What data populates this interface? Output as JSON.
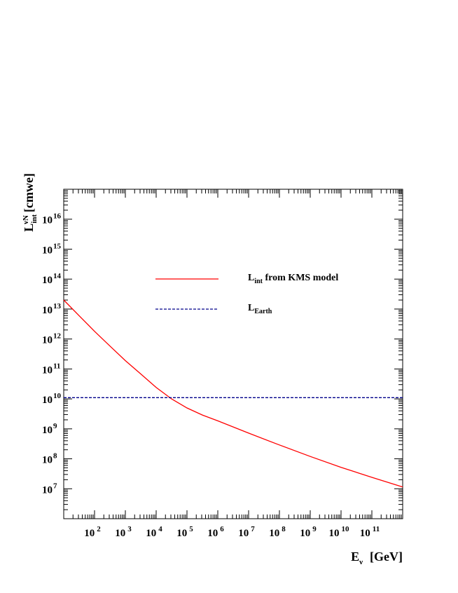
{
  "chart_data": {
    "type": "line",
    "x_scale": "log",
    "y_scale": "log",
    "xlabel": {
      "main": "E",
      "sub": "ν",
      "unit": "[GeV]"
    },
    "ylabel": {
      "main": "L",
      "sub": "int",
      "sup": "νN",
      "unit": "[cmwe]"
    },
    "xlim": [
      10,
      1000000000000.0
    ],
    "ylim": [
      1000000.0,
      1e+17
    ],
    "x_ticks": [
      {
        "base": "10",
        "exp": "2",
        "value": 100.0
      },
      {
        "base": "10",
        "exp": "3",
        "value": 1000.0
      },
      {
        "base": "10",
        "exp": "4",
        "value": 10000.0
      },
      {
        "base": "10",
        "exp": "5",
        "value": 100000.0
      },
      {
        "base": "10",
        "exp": "6",
        "value": 1000000.0
      },
      {
        "base": "10",
        "exp": "7",
        "value": 10000000.0
      },
      {
        "base": "10",
        "exp": "8",
        "value": 100000000.0
      },
      {
        "base": "10",
        "exp": "9",
        "value": 1000000000.0
      },
      {
        "base": "10",
        "exp": "10",
        "value": 10000000000.0
      },
      {
        "base": "10",
        "exp": "11",
        "value": 100000000000.0
      }
    ],
    "y_ticks": [
      {
        "base": "10",
        "exp": "7",
        "value": 10000000.0
      },
      {
        "base": "10",
        "exp": "8",
        "value": 100000000.0
      },
      {
        "base": "10",
        "exp": "9",
        "value": 1000000000.0
      },
      {
        "base": "10",
        "exp": "10",
        "value": 10000000000.0
      },
      {
        "base": "10",
        "exp": "11",
        "value": 100000000000.0
      },
      {
        "base": "10",
        "exp": "12",
        "value": 1000000000000.0
      },
      {
        "base": "10",
        "exp": "13",
        "value": 10000000000000.0
      },
      {
        "base": "10",
        "exp": "14",
        "value": 100000000000000.0
      },
      {
        "base": "10",
        "exp": "15",
        "value": 1000000000000000.0
      },
      {
        "base": "10",
        "exp": "16",
        "value": 1e+16
      }
    ],
    "grid": false,
    "legend_position": "upper-center",
    "series": [
      {
        "name": {
          "main": "L",
          "sub": "int",
          "rest": " from KMS model"
        },
        "color": "#ff0000",
        "style": "solid",
        "x": [
          10,
          31.6,
          100,
          316,
          1000,
          3160,
          10000,
          31600,
          100000,
          316000,
          1000000.0,
          10000000.0,
          100000000.0,
          1000000000.0,
          10000000000.0,
          100000000000.0,
          1000000000000.0
        ],
        "y": [
          20000000000000.0,
          6000000000000.0,
          1800000000000.0,
          580000000000.0,
          190000000000.0,
          68000000000.0,
          24000000000.0,
          10000000000.0,
          5000000000.0,
          2900000000.0,
          1850000000.0,
          720000000.0,
          290000000.0,
          120000000.0,
          52000000.0,
          24000000.0,
          11500000.0
        ]
      },
      {
        "name": {
          "main": "L",
          "sub": "Earth",
          "rest": ""
        },
        "color": "#00008b",
        "style": "dashed",
        "x": [
          10,
          1000000000000.0
        ],
        "y": [
          11000000000.0,
          11000000000.0
        ]
      }
    ]
  }
}
